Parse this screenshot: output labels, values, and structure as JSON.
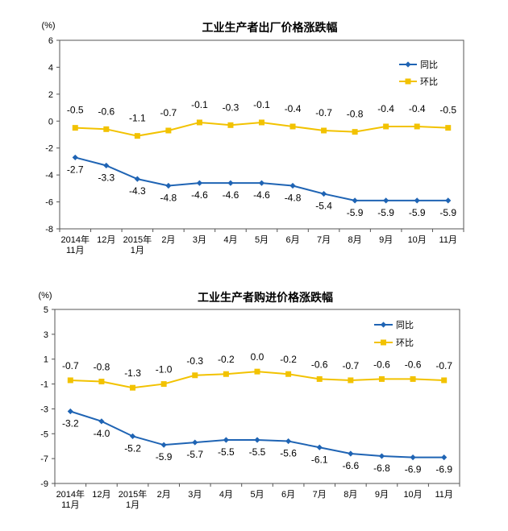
{
  "chart_data": [
    {
      "type": "line",
      "title": "工业生产者出厂价格涨跌幅",
      "unit_label": "(%)",
      "categories": [
        "2014年\n11月",
        "12月",
        "2015年\n1月",
        "2月",
        "3月",
        "4月",
        "5月",
        "6月",
        "7月",
        "8月",
        "9月",
        "10月",
        "11月"
      ],
      "ylim": [
        -8,
        6
      ],
      "yticks": [
        6,
        4,
        2,
        0,
        -2,
        -4,
        -6,
        -8
      ],
      "grid": false,
      "legend": "top-right",
      "series": [
        {
          "name": "同比",
          "color": "#1F64B4",
          "marker": "diamond",
          "values": [
            -2.7,
            -3.3,
            -4.3,
            -4.8,
            -4.6,
            -4.6,
            -4.6,
            -4.8,
            -5.4,
            -5.9,
            -5.9,
            -5.9,
            -5.9
          ]
        },
        {
          "name": "环比",
          "color": "#F2C200",
          "marker": "square",
          "values": [
            -0.5,
            -0.6,
            -1.1,
            -0.7,
            -0.1,
            -0.3,
            -0.1,
            -0.4,
            -0.7,
            -0.8,
            -0.4,
            -0.4,
            -0.5
          ]
        }
      ]
    },
    {
      "type": "line",
      "title": "工业生产者购进价格涨跌幅",
      "unit_label": "(%)",
      "categories": [
        "2014年\n11月",
        "12月",
        "2015年\n1月",
        "2月",
        "3月",
        "4月",
        "5月",
        "6月",
        "7月",
        "8月",
        "9月",
        "10月",
        "11月"
      ],
      "ylim": [
        -9,
        5
      ],
      "yticks": [
        5,
        3,
        1,
        -1,
        -3,
        -5,
        -7,
        -9
      ],
      "grid": false,
      "legend": "top-right",
      "series": [
        {
          "name": "同比",
          "color": "#1F64B4",
          "marker": "diamond",
          "values": [
            -3.2,
            -4.0,
            -5.2,
            -5.9,
            -5.7,
            -5.5,
            -5.5,
            -5.6,
            -6.1,
            -6.6,
            -6.8,
            -6.9,
            -6.9
          ]
        },
        {
          "name": "环比",
          "color": "#F2C200",
          "marker": "square",
          "values": [
            -0.7,
            -0.8,
            -1.3,
            -1.0,
            -0.3,
            -0.2,
            0.0,
            -0.2,
            -0.6,
            -0.7,
            -0.6,
            -0.6,
            -0.7
          ]
        }
      ]
    }
  ]
}
